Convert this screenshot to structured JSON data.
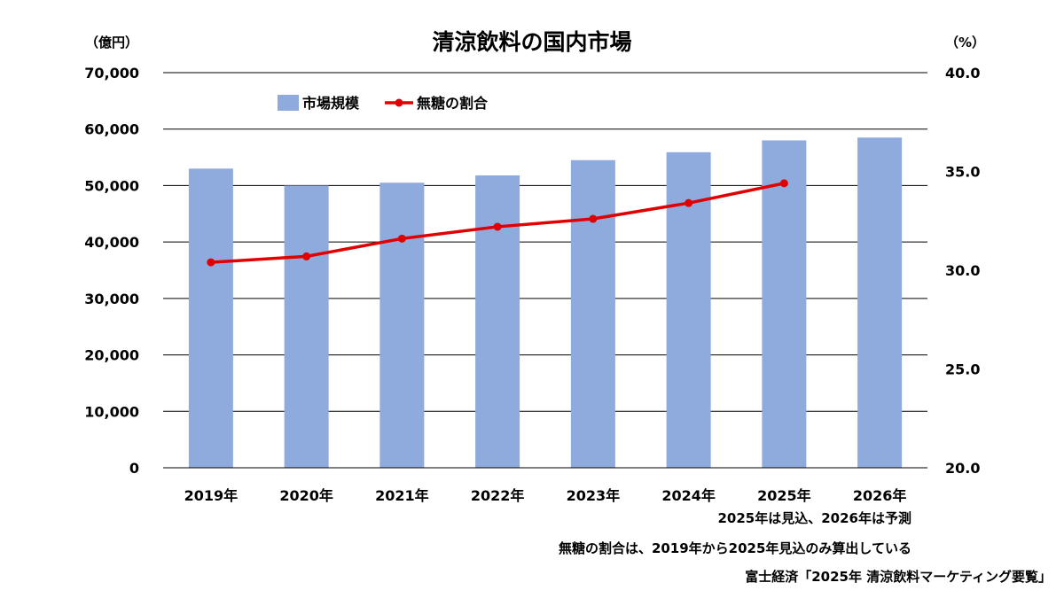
{
  "chart_data": {
    "type": "bar+line",
    "title": "清涼飲料の国内市場",
    "left_axis_unit": "（億円）",
    "right_axis_unit": "（%）",
    "categories": [
      "2019年",
      "2020年",
      "2021年",
      "2022年",
      "2023年",
      "2024年",
      "2025年",
      "2026年"
    ],
    "series": [
      {
        "name": "市場規模",
        "kind": "bar",
        "axis": "left",
        "color": "#8faadc",
        "values": [
          53000,
          50000,
          50500,
          51800,
          54500,
          55900,
          58000,
          58500
        ]
      },
      {
        "name": "無糖の割合",
        "kind": "line",
        "axis": "right",
        "color": "#e00000",
        "values": [
          30.4,
          30.7,
          31.6,
          32.2,
          32.6,
          33.4,
          34.4,
          null
        ]
      }
    ],
    "y_left": {
      "min": 0,
      "max": 70000,
      "ticks": [
        "0",
        "10,000",
        "20,000",
        "30,000",
        "40,000",
        "50,000",
        "60,000",
        "70,000"
      ]
    },
    "y_right": {
      "min": 20,
      "max": 40,
      "ticks": [
        "20.0",
        "25.0",
        "30.0",
        "35.0",
        "40.0"
      ]
    },
    "grid": true,
    "legend_position": "top-left"
  },
  "notes": {
    "line1": "2025年は見込、2026年は予測",
    "line2": "無糖の割合は、2019年から2025年見込のみ算出している"
  },
  "source": "富士経済「2025年 清涼飲料マーケティング要覧」"
}
